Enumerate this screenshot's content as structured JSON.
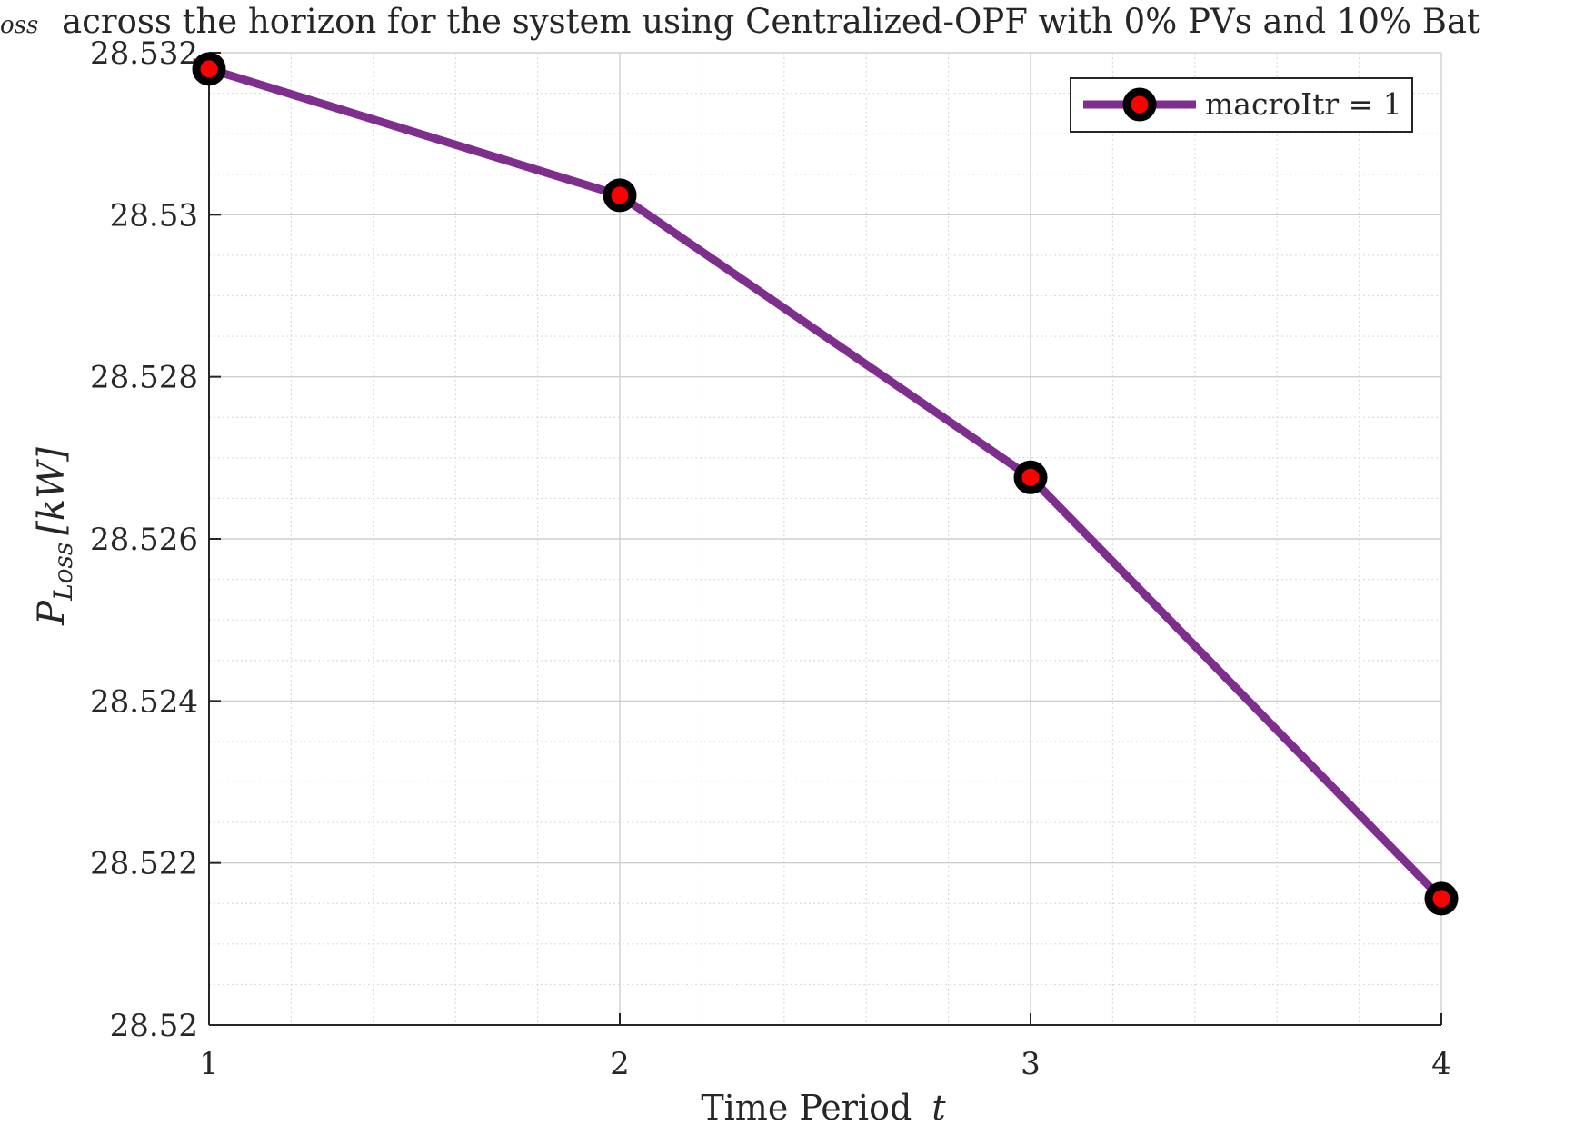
{
  "chart_data": {
    "type": "line",
    "title_prefix": "oss",
    "title": "across the horizon for the system using Centralized-OPF with 0% PVs and 10% Bat",
    "xlabel": "Time Period",
    "xlabel_var": "t",
    "ylabel_main": "P",
    "ylabel_sub": "Loss",
    "ylabel_unit": "[kW]",
    "x": [
      1,
      2,
      3,
      4
    ],
    "xlim": [
      1,
      4
    ],
    "ylim": [
      28.52,
      28.532
    ],
    "xticks": [
      1,
      2,
      3,
      4
    ],
    "xtick_labels": [
      "1",
      "2",
      "3",
      "4"
    ],
    "yticks": [
      28.52,
      28.522,
      28.524,
      28.526,
      28.528,
      28.53,
      28.532
    ],
    "ytick_labels": [
      "28.52",
      "28.522",
      "28.524",
      "28.526",
      "28.528",
      "28.53",
      "28.532"
    ],
    "grid": true,
    "minor_grid": true,
    "legend_position": "top-right",
    "series": [
      {
        "name": "macroItr = 1",
        "values": [
          28.5318,
          28.53024,
          28.52676,
          28.52156
        ],
        "line_color": "#7e2f8e",
        "marker_fill": "#ff0000",
        "marker_edge": "#000000"
      }
    ]
  }
}
